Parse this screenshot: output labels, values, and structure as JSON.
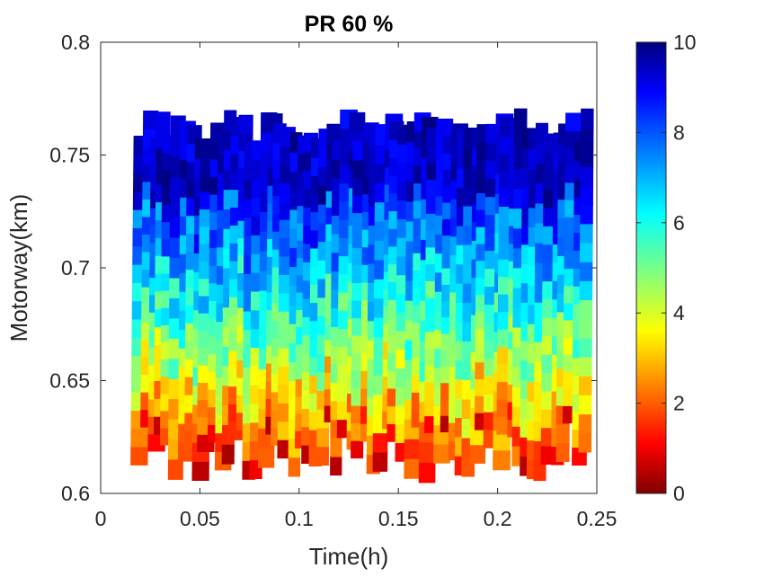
{
  "chart_data": {
    "type": "heatmap",
    "title": "PR 60 %",
    "xlabel": "Time(h)",
    "ylabel": "Motorway(km)",
    "xlim": [
      0,
      0.25
    ],
    "ylim": [
      0.6,
      0.8
    ],
    "xticks": [
      "0",
      "0.05",
      "0.1",
      "0.15",
      "0.2",
      "0.25"
    ],
    "yticks": [
      "0.6",
      "0.65",
      "0.7",
      "0.75",
      "0.8"
    ],
    "colorbar": {
      "colormap": "jet-reversed",
      "range": [
        0,
        10
      ],
      "ticks": [
        "0",
        "2",
        "4",
        "6",
        "8",
        "10"
      ],
      "low_color": "#7f0000",
      "high_color": "#00007f"
    },
    "trajectories": {
      "count": 62,
      "first_entry_time_h": 0.016,
      "last_entry_time_h": 0.241,
      "entry_position_km_range": [
        0.605,
        0.632
      ],
      "exit_position_km_range": [
        0.755,
        0.771
      ],
      "segment_duration_h_range": [
        0.006,
        0.009
      ],
      "value_near_entry": "low (0-4)",
      "value_mid_section": "medium (5-7)",
      "value_near_exit": "high (8-10)"
    },
    "grid": false,
    "box": true
  }
}
